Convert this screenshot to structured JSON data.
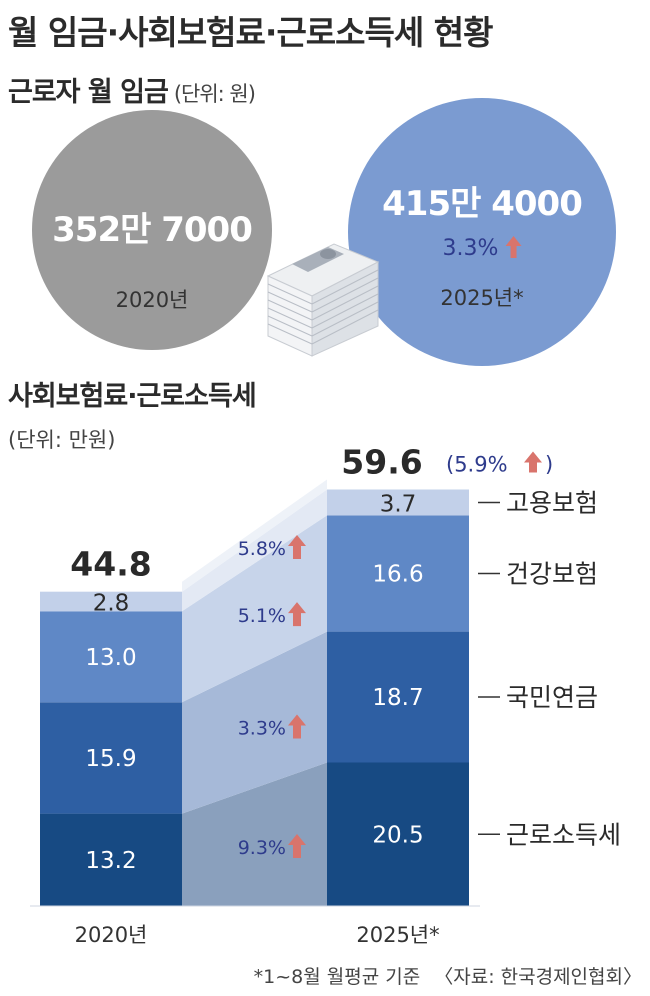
{
  "title": "월 임금·사회보험료·근로소득세 현황",
  "wage": {
    "title": "근로자 월 임금",
    "unit": "(단위: 원)",
    "y2020": {
      "value": "352만 7000",
      "year": "2020년"
    },
    "y2025": {
      "value": "415만 4000",
      "growth": "3.3%",
      "year": "2025년*"
    }
  },
  "insurance": {
    "title": "사회보험료·근로소득세",
    "unit": "(단위: 만원)"
  },
  "chart_data": {
    "type": "bar",
    "stacked": true,
    "categories": [
      "2020년",
      "2025년*"
    ],
    "series": [
      {
        "name": "근로소득세",
        "values": [
          13.2,
          20.5
        ],
        "growth": "9.3%",
        "color": "#174a83"
      },
      {
        "name": "국민연금",
        "values": [
          15.9,
          18.7
        ],
        "growth": "3.3%",
        "color": "#2e5fa3"
      },
      {
        "name": "건강보험",
        "values": [
          13.0,
          16.6
        ],
        "growth": "5.1%",
        "color": "#5f88c6"
      },
      {
        "name": "고용보험",
        "values": [
          2.8,
          3.7
        ],
        "growth": "5.8%",
        "color": "#c2d0e9"
      }
    ],
    "value_labels": [
      [
        "13.2",
        "15.9",
        "13.0",
        "2.8"
      ],
      [
        "20.5",
        "18.7",
        "16.6",
        "3.7"
      ]
    ],
    "totals": [
      44.8,
      59.6
    ],
    "total_labels": [
      "44.8",
      "59.6"
    ],
    "total_growth": "(5.9%",
    "total_growth_close": ")"
  },
  "footnote": {
    "note": "*1~8월 월평균 기준",
    "source": "〈자료: 한국경제인협회〉"
  },
  "colors": {
    "arrow": "#d9746c",
    "growth_text": "#2e3b8c",
    "circle_2020": "#9b9b9b",
    "circle_2025": "#7b9bd1"
  }
}
